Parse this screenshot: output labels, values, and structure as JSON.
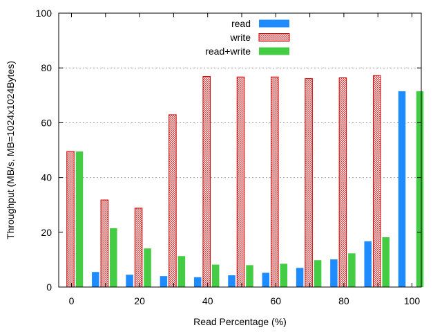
{
  "chart_data": {
    "type": "bar",
    "title": "",
    "xlabel": "Read Percentage (%)",
    "ylabel": "Throughput (MB/s, MB=1024x1024Bytes)",
    "ylim": [
      0,
      100
    ],
    "yticks": [
      0,
      20,
      40,
      60,
      80,
      100
    ],
    "grid_y": true,
    "grid_lines_at": [
      80,
      60,
      40
    ],
    "legend_position": "top-center",
    "categories": [
      "0",
      "10",
      "20",
      "30",
      "40",
      "50",
      "60",
      "70",
      "80",
      "90",
      "100"
    ],
    "x_tick_labels": [
      "0",
      "20",
      "40",
      "60",
      "80",
      "100"
    ],
    "series": [
      {
        "name": "read",
        "color": "#1e8cff",
        "pattern": "solid",
        "values": [
          0,
          5.5,
          4.5,
          4.0,
          3.6,
          4.3,
          5.2,
          7.0,
          10.1,
          16.7,
          71.5
        ]
      },
      {
        "name": "write",
        "color": "#cc0000",
        "pattern": "checker",
        "values": [
          49.5,
          31.8,
          28.8,
          62.9,
          76.9,
          76.7,
          76.7,
          76.1,
          76.4,
          77.2,
          0
        ]
      },
      {
        "name": "read+write",
        "color": "#44cc44",
        "pattern": "solid",
        "values": [
          49.5,
          21.5,
          14.1,
          11.3,
          8.2,
          8.0,
          8.5,
          9.8,
          12.3,
          18.2,
          71.5
        ]
      }
    ]
  }
}
